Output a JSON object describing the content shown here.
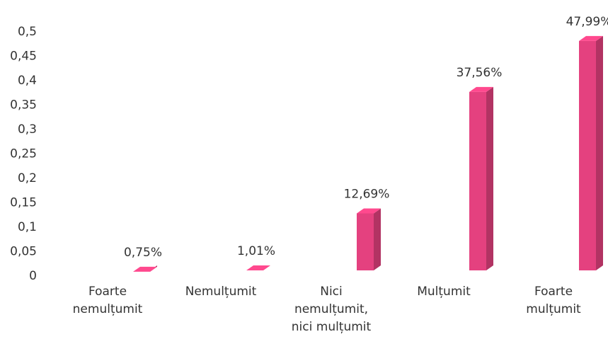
{
  "chart_data": {
    "type": "bar3d",
    "categories": [
      "Foarte nemulțumit",
      "Nemulțumit",
      "Nici nemulțumit, nici mulțumit",
      "Mulțumit",
      "Foarte mulțumit"
    ],
    "values": [
      0.0075,
      0.0101,
      0.1269,
      0.3756,
      0.4799
    ],
    "value_labels": [
      "0,75%",
      "1,01%",
      "12,69%",
      "37,56%",
      "47,99%"
    ],
    "color": "#e4417f",
    "ylim": [
      0,
      0.5
    ],
    "yticks": [
      0,
      {
        "value": 0.05,
        "label": "0,05"
      },
      {
        "value": 0.1,
        "label": "0,1"
      },
      {
        "value": 0.15,
        "label": "0,15"
      },
      {
        "value": 0.2,
        "label": "0,2"
      },
      {
        "value": 0.25,
        "label": "0,25"
      },
      {
        "value": 0.3,
        "label": "0,3"
      },
      {
        "value": 0.35,
        "label": "0,35"
      },
      {
        "value": 0.4,
        "label": "0,4"
      },
      {
        "value": 0.45,
        "label": "0,45"
      },
      {
        "value": 0.5,
        "label": "0,5"
      }
    ],
    "grid": false
  }
}
